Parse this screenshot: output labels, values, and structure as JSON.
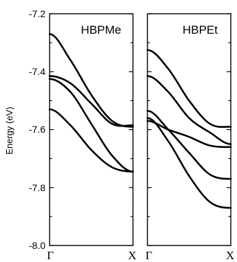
{
  "chart_data": [
    {
      "type": "line",
      "title": "HBPMe",
      "ylabel": "Energy (eV)",
      "xlabel": "",
      "x_ticks": [
        "Γ",
        "X"
      ],
      "ylim": [
        -8.0,
        -7.2
      ],
      "yticks": [
        "-7.2",
        "-7.4",
        "-7.6",
        "-7.8",
        "-8.0"
      ],
      "grid": false,
      "x": [
        0,
        0.25,
        0.5,
        0.75,
        1
      ],
      "series": [
        {
          "values": [
            -7.27,
            -7.36,
            -7.48,
            -7.57,
            -7.59
          ]
        },
        {
          "values": [
            -7.415,
            -7.44,
            -7.51,
            -7.58,
            -7.585
          ]
        },
        {
          "values": [
            -7.425,
            -7.47,
            -7.58,
            -7.69,
            -7.745
          ]
        },
        {
          "values": [
            -7.53,
            -7.585,
            -7.67,
            -7.73,
            -7.745
          ]
        }
      ]
    },
    {
      "type": "line",
      "title": "HBPEt",
      "xlabel": "",
      "x_ticks": [
        "Γ",
        "X"
      ],
      "ylim": [
        -8.0,
        -7.2
      ],
      "grid": false,
      "x": [
        0,
        0.25,
        0.5,
        0.75,
        1
      ],
      "series": [
        {
          "values": [
            -7.325,
            -7.39,
            -7.5,
            -7.58,
            -7.59
          ]
        },
        {
          "values": [
            -7.415,
            -7.47,
            -7.56,
            -7.61,
            -7.65
          ]
        },
        {
          "values": [
            -7.535,
            -7.6,
            -7.68,
            -7.755,
            -7.77
          ]
        },
        {
          "values": [
            -7.57,
            -7.6,
            -7.625,
            -7.655,
            -7.66
          ]
        },
        {
          "values": [
            -7.56,
            -7.64,
            -7.76,
            -7.85,
            -7.87
          ]
        }
      ]
    }
  ]
}
